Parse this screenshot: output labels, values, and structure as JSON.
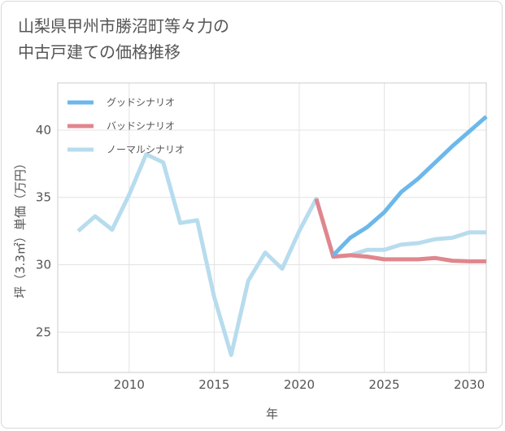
{
  "title": "山梨県甲州市勝沼町等々力の\n中古戸建ての価格推移",
  "chart_data": {
    "type": "line",
    "xlabel": "年",
    "ylabel": "坪（3.3㎡）単価（万円）",
    "xlim": [
      2005.8,
      2031
    ],
    "ylim": [
      22,
      43.5
    ],
    "xticks": [
      2010,
      2015,
      2020,
      2025,
      2030
    ],
    "yticks": [
      25,
      30,
      35,
      40
    ],
    "grid": true,
    "legend_position": "top-left",
    "series": [
      {
        "name": "グッドシナリオ",
        "color": "#6cb8ea",
        "x": [
          2022,
          2023,
          2024,
          2025,
          2026,
          2027,
          2028,
          2029,
          2030,
          2031
        ],
        "y": [
          30.7,
          32.0,
          32.8,
          33.9,
          35.4,
          36.4,
          37.6,
          38.8,
          39.9,
          41.0
        ]
      },
      {
        "name": "バッドシナリオ",
        "color": "#e0868e",
        "x": [
          2021,
          2022,
          2023,
          2024,
          2025,
          2026,
          2027,
          2028,
          2029,
          2030,
          2031
        ],
        "y": [
          34.9,
          30.6,
          30.7,
          30.6,
          30.4,
          30.4,
          30.4,
          30.5,
          30.3,
          30.25,
          30.25
        ]
      },
      {
        "name": "ノーマルシナリオ",
        "color": "#b7dcee",
        "x": [
          2007,
          2008,
          2009,
          2010,
          2011,
          2012,
          2013,
          2014,
          2015,
          2016,
          2017,
          2018,
          2019,
          2020,
          2021,
          2022,
          2023,
          2024,
          2025,
          2026,
          2027,
          2028,
          2029,
          2030,
          2031
        ],
        "y": [
          32.5,
          33.6,
          32.6,
          35.2,
          38.2,
          37.6,
          33.1,
          33.3,
          27.6,
          23.3,
          28.8,
          30.9,
          29.7,
          32.5,
          34.9,
          30.6,
          30.7,
          31.1,
          31.1,
          31.5,
          31.6,
          31.9,
          32.0,
          32.4,
          32.4
        ]
      }
    ]
  }
}
